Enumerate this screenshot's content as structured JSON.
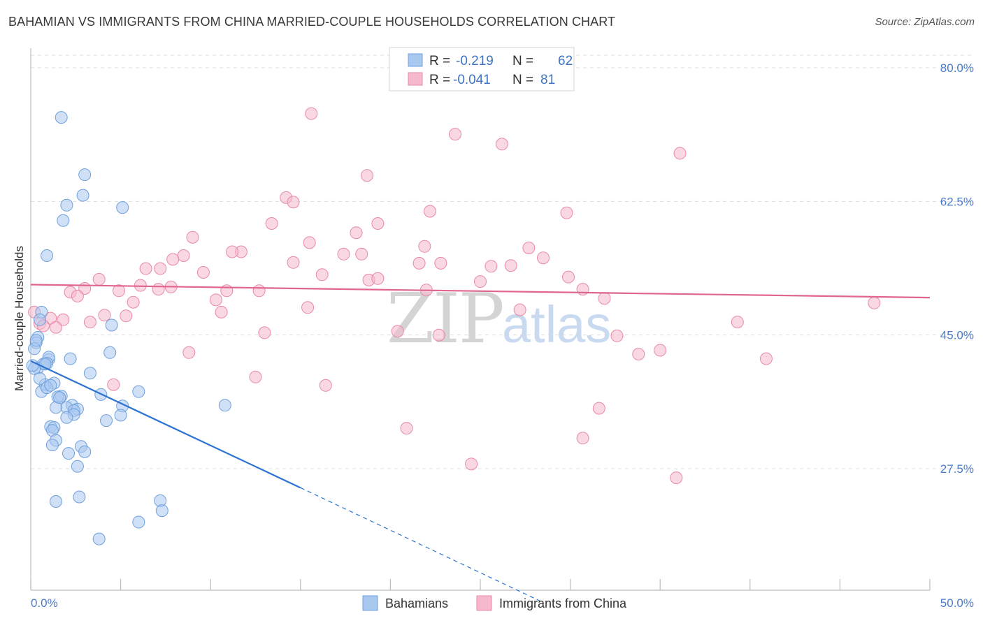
{
  "title": "BAHAMIAN VS IMMIGRANTS FROM CHINA MARRIED-COUPLE HOUSEHOLDS CORRELATION CHART",
  "source": "Source: ZipAtlas.com",
  "watermark": {
    "zip": "ZIP",
    "atlas": "atlas"
  },
  "colors": {
    "blue_fill": "#a9c8f0",
    "blue_stroke": "#6fa0dc",
    "blue_line": "#2c73d2",
    "pink_fill": "#f6b8cc",
    "pink_stroke": "#e88aa8",
    "pink_line": "#e06690",
    "grid": "#dcdcdc",
    "axis_text": "#4a7cc9"
  },
  "legend": {
    "rows": [
      {
        "series": "Bahamians",
        "r_label": "R =",
        "r_value": "-0.219",
        "n_label": "N =",
        "n_value": "62"
      },
      {
        "series": "Immigrants from China",
        "r_label": "R =",
        "r_value": "-0.041",
        "n_label": "N =",
        "n_value": "81"
      }
    ]
  },
  "chart_data": {
    "type": "scatter",
    "title": "BAHAMIAN VS IMMIGRANTS FROM CHINA MARRIED-COUPLE HOUSEHOLDS CORRELATION CHART",
    "xlabel": "",
    "ylabel": "Married-couple Households",
    "xlim": [
      0,
      50
    ],
    "ylim": [
      10,
      82
    ],
    "x_tick_labels": [
      "0.0%",
      "50.0%"
    ],
    "y_ticks": [
      80.0,
      62.5,
      45.0,
      27.5
    ],
    "y_tick_labels": [
      "80.0%",
      "62.5%",
      "45.0%",
      "27.5%"
    ],
    "grid": true,
    "legend_position": "bottom-center",
    "series": [
      {
        "name": "Bahamians",
        "color": "#6fa0dc",
        "trend": {
          "x": [
            0,
            15
          ],
          "y": [
            41.6,
            25.0
          ],
          "dashed_extension_to": [
            28.3,
            10.2
          ]
        },
        "points": [
          [
            1.7,
            73.5
          ],
          [
            3.0,
            66.0
          ],
          [
            2.9,
            63.3
          ],
          [
            2.0,
            62.0
          ],
          [
            5.1,
            61.7
          ],
          [
            1.8,
            60.0
          ],
          [
            0.9,
            55.4
          ],
          [
            0.4,
            44.7
          ],
          [
            0.6,
            48.0
          ],
          [
            0.3,
            44.0
          ],
          [
            0.2,
            43.2
          ],
          [
            0.5,
            47.0
          ],
          [
            4.5,
            46.3
          ],
          [
            1.0,
            41.8
          ],
          [
            1.0,
            42.1
          ],
          [
            0.7,
            41.2
          ],
          [
            0.4,
            40.7
          ],
          [
            0.2,
            40.6
          ],
          [
            0.9,
            41.3
          ],
          [
            4.4,
            42.7
          ],
          [
            3.3,
            40.0
          ],
          [
            0.8,
            38.5
          ],
          [
            1.3,
            38.7
          ],
          [
            0.6,
            37.6
          ],
          [
            0.9,
            38.1
          ],
          [
            1.7,
            37.0
          ],
          [
            1.5,
            36.9
          ],
          [
            3.9,
            37.2
          ],
          [
            6.0,
            37.6
          ],
          [
            2.3,
            35.8
          ],
          [
            2.0,
            35.5
          ],
          [
            1.4,
            35.5
          ],
          [
            2.6,
            35.3
          ],
          [
            2.4,
            35.1
          ],
          [
            5.1,
            35.7
          ],
          [
            10.8,
            35.8
          ],
          [
            2.4,
            34.6
          ],
          [
            2.0,
            34.2
          ],
          [
            5.0,
            34.5
          ],
          [
            4.2,
            33.8
          ],
          [
            1.1,
            33.0
          ],
          [
            1.3,
            32.9
          ],
          [
            1.2,
            32.5
          ],
          [
            1.4,
            31.2
          ],
          [
            1.2,
            30.6
          ],
          [
            2.8,
            30.4
          ],
          [
            2.1,
            29.5
          ],
          [
            3.0,
            29.7
          ],
          [
            2.6,
            27.8
          ],
          [
            2.7,
            23.8
          ],
          [
            1.4,
            23.2
          ],
          [
            7.2,
            23.3
          ],
          [
            7.3,
            22.0
          ],
          [
            6.0,
            20.5
          ],
          [
            3.8,
            18.3
          ],
          [
            2.2,
            41.9
          ],
          [
            0.1,
            41.0
          ],
          [
            1.6,
            36.8
          ],
          [
            0.5,
            39.3
          ],
          [
            1.1,
            38.4
          ],
          [
            0.3,
            44.3
          ],
          [
            0.8,
            41.2
          ]
        ]
      },
      {
        "name": "Immigrants from China",
        "color": "#e88aa8",
        "trend": {
          "x": [
            0,
            50
          ],
          "y": [
            51.6,
            49.9
          ]
        },
        "points": [
          [
            15.6,
            74.0
          ],
          [
            23.6,
            71.3
          ],
          [
            26.2,
            70.0
          ],
          [
            36.1,
            68.8
          ],
          [
            18.7,
            65.9
          ],
          [
            14.2,
            63.0
          ],
          [
            14.6,
            62.4
          ],
          [
            22.2,
            61.2
          ],
          [
            29.8,
            61.0
          ],
          [
            13.4,
            59.6
          ],
          [
            19.3,
            59.6
          ],
          [
            18.1,
            58.4
          ],
          [
            9.0,
            57.8
          ],
          [
            15.5,
            57.1
          ],
          [
            21.9,
            56.6
          ],
          [
            27.7,
            56.4
          ],
          [
            11.7,
            55.9
          ],
          [
            11.2,
            55.9
          ],
          [
            17.4,
            55.6
          ],
          [
            18.4,
            55.6
          ],
          [
            8.5,
            55.4
          ],
          [
            7.9,
            54.9
          ],
          [
            28.5,
            55.1
          ],
          [
            21.6,
            54.4
          ],
          [
            14.6,
            54.5
          ],
          [
            22.8,
            54.4
          ],
          [
            25.6,
            54.0
          ],
          [
            26.7,
            54.1
          ],
          [
            6.4,
            53.7
          ],
          [
            7.2,
            53.7
          ],
          [
            9.6,
            53.2
          ],
          [
            16.2,
            52.9
          ],
          [
            29.9,
            52.6
          ],
          [
            18.8,
            52.2
          ],
          [
            19.3,
            52.4
          ],
          [
            3.8,
            52.3
          ],
          [
            25.0,
            52.0
          ],
          [
            6.1,
            51.5
          ],
          [
            7.8,
            51.3
          ],
          [
            3.0,
            51.1
          ],
          [
            7.1,
            51.0
          ],
          [
            4.9,
            50.8
          ],
          [
            10.9,
            50.8
          ],
          [
            12.7,
            50.8
          ],
          [
            22.0,
            50.9
          ],
          [
            30.7,
            51.0
          ],
          [
            2.2,
            50.6
          ],
          [
            2.6,
            50.1
          ],
          [
            31.9,
            49.8
          ],
          [
            10.3,
            49.6
          ],
          [
            5.7,
            49.3
          ],
          [
            46.9,
            49.2
          ],
          [
            15.4,
            48.6
          ],
          [
            27.2,
            48.3
          ],
          [
            10.6,
            48.0
          ],
          [
            4.1,
            47.6
          ],
          [
            5.3,
            47.5
          ],
          [
            1.1,
            47.2
          ],
          [
            1.8,
            47.0
          ],
          [
            3.3,
            46.7
          ],
          [
            39.3,
            46.7
          ],
          [
            0.5,
            46.5
          ],
          [
            0.7,
            46.2
          ],
          [
            1.4,
            46.0
          ],
          [
            20.4,
            45.5
          ],
          [
            13.0,
            45.3
          ],
          [
            22.7,
            45.0
          ],
          [
            32.6,
            44.9
          ],
          [
            35.0,
            43.0
          ],
          [
            8.8,
            42.7
          ],
          [
            33.8,
            42.5
          ],
          [
            40.9,
            41.9
          ],
          [
            12.5,
            39.5
          ],
          [
            4.6,
            38.5
          ],
          [
            16.4,
            38.4
          ],
          [
            31.6,
            35.4
          ],
          [
            20.9,
            32.8
          ],
          [
            30.7,
            31.5
          ],
          [
            24.5,
            28.1
          ],
          [
            35.9,
            26.3
          ],
          [
            0.2,
            48.0
          ]
        ]
      }
    ]
  }
}
